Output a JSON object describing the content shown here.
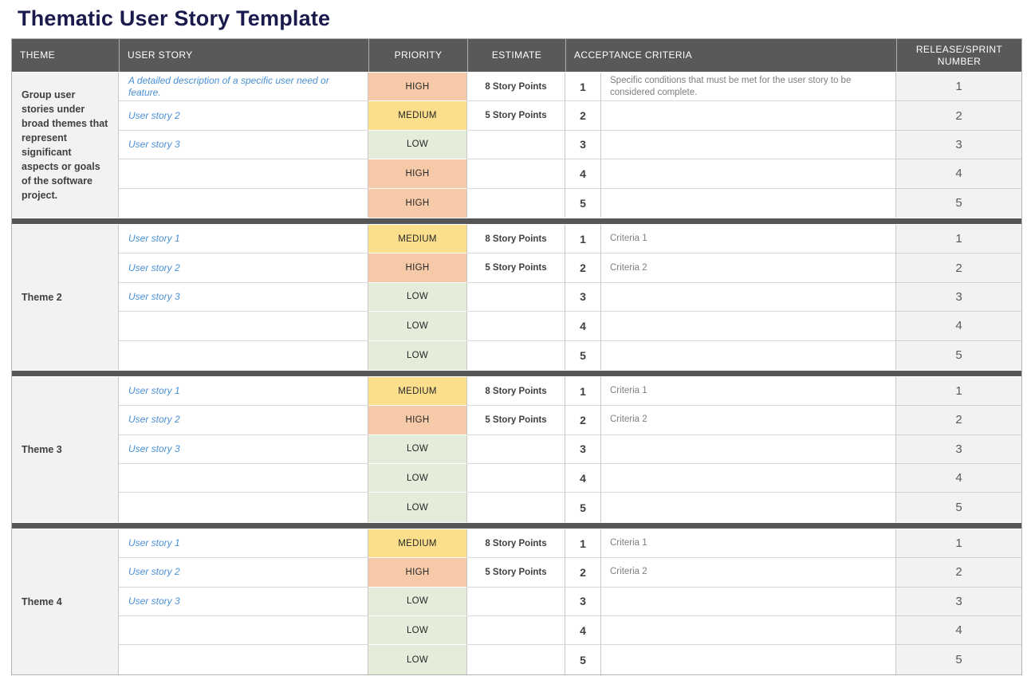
{
  "page_title": "Thematic User Story Template",
  "colors": {
    "title_text": "#1a1a4d",
    "header_bg": "#595959",
    "divider_bar": "#565656",
    "theme_cell_bg": "#f2f2f2",
    "release_cell_bg": "#f2f2f2",
    "story_text": "#4a90d6",
    "priority": {
      "HIGH": "#f6caa8",
      "MEDIUM": "#fbdf8c",
      "LOW": "#e3edda"
    }
  },
  "table": {
    "headers": {
      "theme": "THEME",
      "user_story": "USER STORY",
      "priority": "PRIORITY",
      "estimate": "ESTIMATE",
      "acceptance_criteria": "ACCEPTANCE CRITERIA",
      "release_sprint": "RELEASE/SPRINT NUMBER"
    },
    "sections": [
      {
        "theme": "Group user stories under broad themes that represent significant aspects or goals of the software project.",
        "rows": [
          {
            "story": "A detailed description of a specific user need or feature.",
            "priority": "HIGH",
            "estimate": "8 Story Points",
            "criteria_num": "1",
            "criteria": "Specific conditions that must be met for the user story to be considered complete.",
            "release": "1"
          },
          {
            "story": "User story 2",
            "priority": "MEDIUM",
            "estimate": "5 Story Points",
            "criteria_num": "2",
            "criteria": "",
            "release": "2"
          },
          {
            "story": "User story 3",
            "priority": "LOW",
            "estimate": "",
            "criteria_num": "3",
            "criteria": "",
            "release": "3"
          },
          {
            "story": "",
            "priority": "HIGH",
            "estimate": "",
            "criteria_num": "4",
            "criteria": "",
            "release": "4"
          },
          {
            "story": "",
            "priority": "HIGH",
            "estimate": "",
            "criteria_num": "5",
            "criteria": "",
            "release": "5"
          }
        ]
      },
      {
        "theme": "Theme 2",
        "rows": [
          {
            "story": "User story 1",
            "priority": "MEDIUM",
            "estimate": "8 Story Points",
            "criteria_num": "1",
            "criteria": "Criteria 1",
            "release": "1"
          },
          {
            "story": "User story 2",
            "priority": "HIGH",
            "estimate": "5 Story Points",
            "criteria_num": "2",
            "criteria": "Criteria 2",
            "release": "2"
          },
          {
            "story": "User story 3",
            "priority": "LOW",
            "estimate": "",
            "criteria_num": "3",
            "criteria": "",
            "release": "3"
          },
          {
            "story": "",
            "priority": "LOW",
            "estimate": "",
            "criteria_num": "4",
            "criteria": "",
            "release": "4"
          },
          {
            "story": "",
            "priority": "LOW",
            "estimate": "",
            "criteria_num": "5",
            "criteria": "",
            "release": "5"
          }
        ]
      },
      {
        "theme": "Theme 3",
        "rows": [
          {
            "story": "User story 1",
            "priority": "MEDIUM",
            "estimate": "8 Story Points",
            "criteria_num": "1",
            "criteria": "Criteria 1",
            "release": "1"
          },
          {
            "story": "User story 2",
            "priority": "HIGH",
            "estimate": "5 Story Points",
            "criteria_num": "2",
            "criteria": "Criteria 2",
            "release": "2"
          },
          {
            "story": "User story 3",
            "priority": "LOW",
            "estimate": "",
            "criteria_num": "3",
            "criteria": "",
            "release": "3"
          },
          {
            "story": "",
            "priority": "LOW",
            "estimate": "",
            "criteria_num": "4",
            "criteria": "",
            "release": "4"
          },
          {
            "story": "",
            "priority": "LOW",
            "estimate": "",
            "criteria_num": "5",
            "criteria": "",
            "release": "5"
          }
        ]
      },
      {
        "theme": "Theme 4",
        "rows": [
          {
            "story": "User story 1",
            "priority": "MEDIUM",
            "estimate": "8 Story Points",
            "criteria_num": "1",
            "criteria": "Criteria 1",
            "release": "1"
          },
          {
            "story": "User story 2",
            "priority": "HIGH",
            "estimate": "5 Story Points",
            "criteria_num": "2",
            "criteria": "Criteria 2",
            "release": "2"
          },
          {
            "story": "User story 3",
            "priority": "LOW",
            "estimate": "",
            "criteria_num": "3",
            "criteria": "",
            "release": "3"
          },
          {
            "story": "",
            "priority": "LOW",
            "estimate": "",
            "criteria_num": "4",
            "criteria": "",
            "release": "4"
          },
          {
            "story": "",
            "priority": "LOW",
            "estimate": "",
            "criteria_num": "5",
            "criteria": "",
            "release": "5"
          }
        ]
      }
    ]
  }
}
